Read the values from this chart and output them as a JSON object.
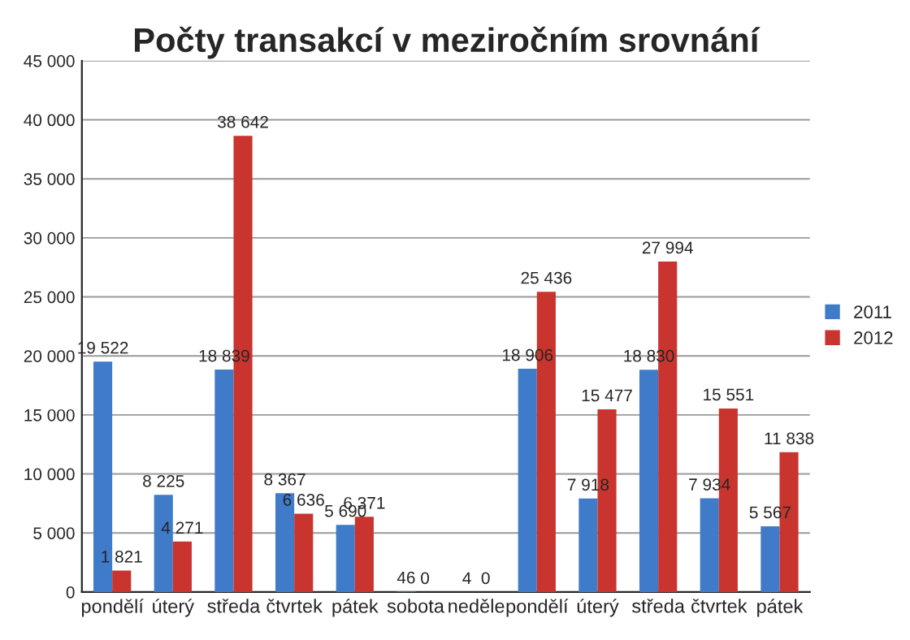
{
  "chart_data": {
    "type": "bar",
    "title": "Počty transakcí v meziročním srovnání",
    "categories": [
      "pondělí",
      "úterý",
      "středa",
      "čtvrtek",
      "pátek",
      "sobota",
      "neděle",
      "pondělí",
      "úterý",
      "středa",
      "čtvrtek",
      "pátek"
    ],
    "series": [
      {
        "name": "2011",
        "color": "#3f7bc9",
        "values": [
          19522,
          8225,
          18839,
          8367,
          5690,
          46,
          4,
          18906,
          7918,
          18830,
          7934,
          5567
        ],
        "value_labels": [
          "19 522",
          "8 225",
          "18 839",
          "8 367",
          "5 690",
          "46",
          "4",
          "18 906",
          "7 918",
          "18 830",
          "7 934",
          "5 567"
        ]
      },
      {
        "name": "2012",
        "color": "#c9342f",
        "values": [
          1821,
          4271,
          38642,
          6636,
          6371,
          0,
          0,
          25436,
          15477,
          27994,
          15551,
          11838
        ],
        "value_labels": [
          "1 821",
          "4 271",
          "38 642",
          "6 636",
          "6 371",
          "0",
          "0",
          "25 436",
          "15 477",
          "27 994",
          "15 551",
          "11 838"
        ]
      }
    ],
    "ylim": [
      0,
      45000
    ],
    "yticks": [
      {
        "value": 0,
        "label": "0"
      },
      {
        "value": 5000,
        "label": "5 000"
      },
      {
        "value": 10000,
        "label": "10 000"
      },
      {
        "value": 15000,
        "label": "15 000"
      },
      {
        "value": 20000,
        "label": "20 000"
      },
      {
        "value": 25000,
        "label": "25 000"
      },
      {
        "value": 30000,
        "label": "30 000"
      },
      {
        "value": 35000,
        "label": "35 000"
      },
      {
        "value": 40000,
        "label": "40 000"
      },
      {
        "value": 45000,
        "label": "45 000"
      }
    ],
    "grid": "y",
    "legend": "right"
  }
}
